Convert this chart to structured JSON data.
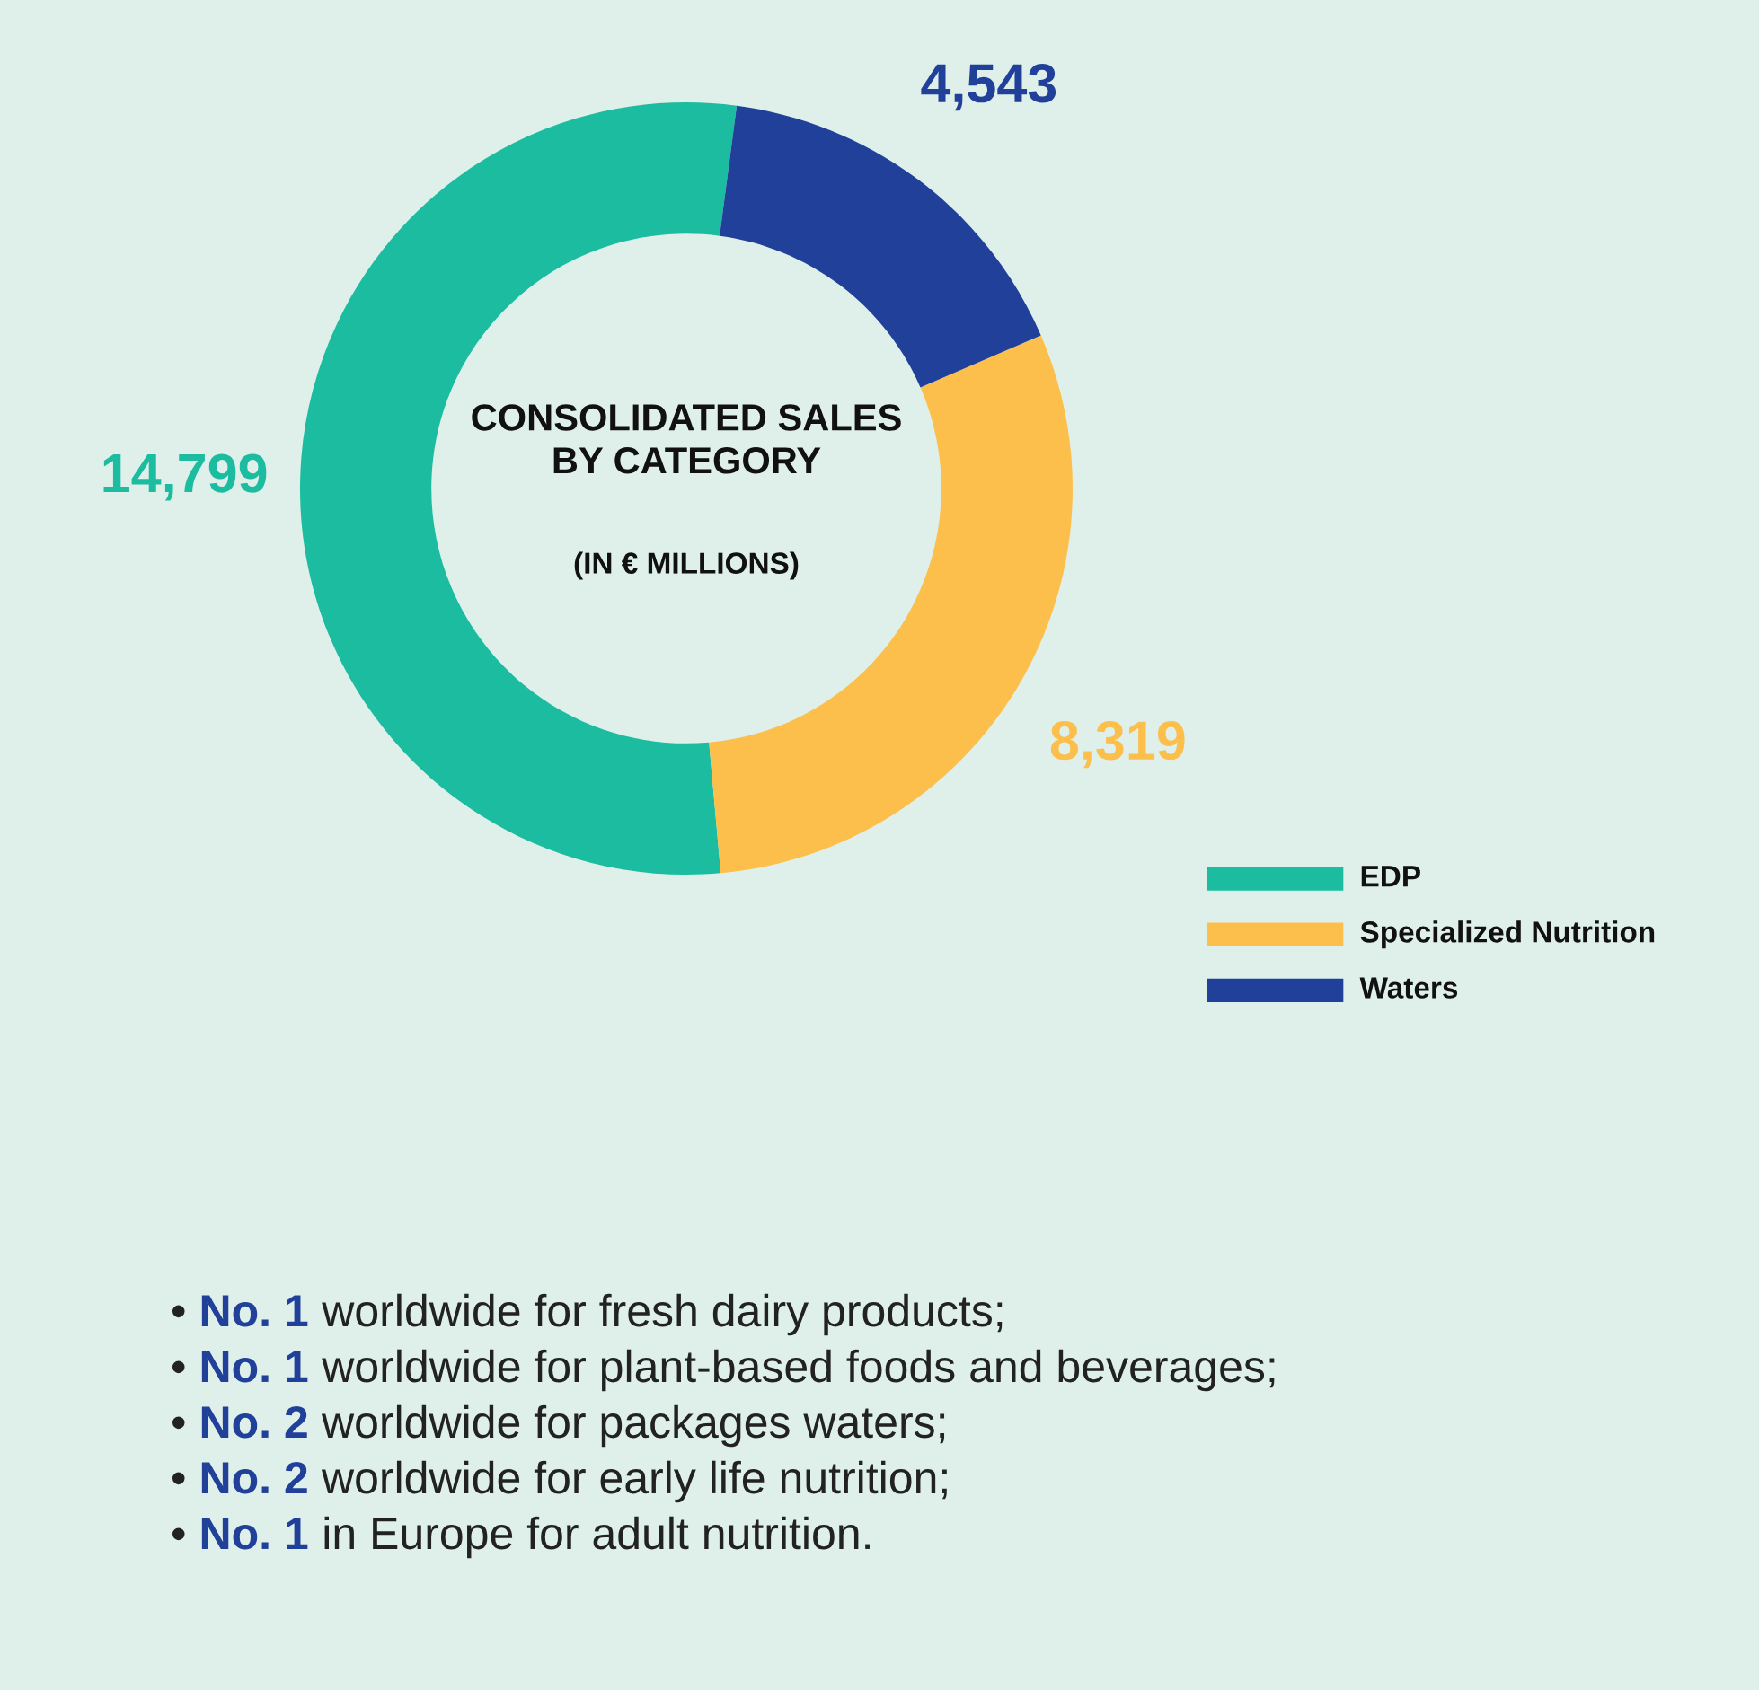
{
  "chart_data": {
    "type": "donut",
    "title": "CONSOLIDATED SALES\nBY CATEGORY",
    "subtitle": "(IN € MILLIONS)",
    "categories": [
      "EDP",
      "Specialized Nutrition",
      "Waters"
    ],
    "values": [
      14799,
      8319,
      4543
    ],
    "colors": [
      "#1bbc9f",
      "#fdbf4c",
      "#21409a"
    ],
    "value_labels": [
      "14,799",
      "8,319",
      "4,543"
    ],
    "legend": "bottom right",
    "annotations": [
      "• No. 1 worldwide for fresh dairy products;",
      "• No. 1 worldwide for plant-based foods and beverages;",
      "• No. 2 worldwide for packages waters;",
      "• No. 2 worldwide for early life nutrition;",
      "• No. 1 in Europe for adult nutrition."
    ]
  }
}
